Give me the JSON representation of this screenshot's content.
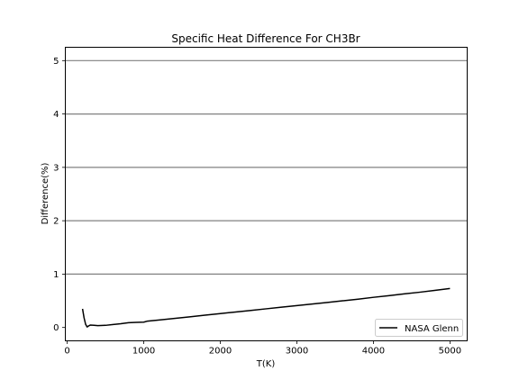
{
  "chart_data": {
    "type": "line",
    "title": "Specific Heat Difference For CH3Br",
    "xlabel": "T(K)",
    "ylabel": "Difference(%)",
    "xlim": [
      -25,
      5225
    ],
    "ylim": [
      -0.25,
      5.25
    ],
    "xticks": [
      0,
      1000,
      2000,
      3000,
      4000,
      5000
    ],
    "yticks": [
      0,
      1,
      2,
      3,
      4,
      5
    ],
    "xtick_labels": [
      "0",
      "1000",
      "2000",
      "3000",
      "4000",
      "5000"
    ],
    "ytick_labels": [
      "0",
      "1",
      "2",
      "3",
      "4",
      "5"
    ],
    "horizontal_reference_lines": [
      1,
      2,
      3,
      4,
      5
    ],
    "grid": false,
    "legend_position": "lower-right",
    "colors": {
      "series": "#000000",
      "reference_lines": "#808080"
    },
    "series": [
      {
        "name": "NASA Glenn",
        "x": [
          200,
          220,
          240,
          260,
          280,
          300,
          350,
          400,
          500,
          600,
          700,
          800,
          900,
          1000,
          1050,
          1200,
          1400,
          1600,
          1800,
          2000,
          2200,
          2400,
          2600,
          2800,
          3000,
          3200,
          3400,
          3600,
          3800,
          4000,
          4200,
          4400,
          4600,
          4800,
          5000
        ],
        "y": [
          0.35,
          0.18,
          0.06,
          0.01,
          0.03,
          0.045,
          0.04,
          0.035,
          0.04,
          0.055,
          0.07,
          0.09,
          0.095,
          0.1,
          0.12,
          0.14,
          0.17,
          0.2,
          0.23,
          0.26,
          0.29,
          0.32,
          0.35,
          0.38,
          0.41,
          0.44,
          0.47,
          0.5,
          0.53,
          0.565,
          0.595,
          0.63,
          0.66,
          0.695,
          0.73
        ]
      }
    ]
  }
}
